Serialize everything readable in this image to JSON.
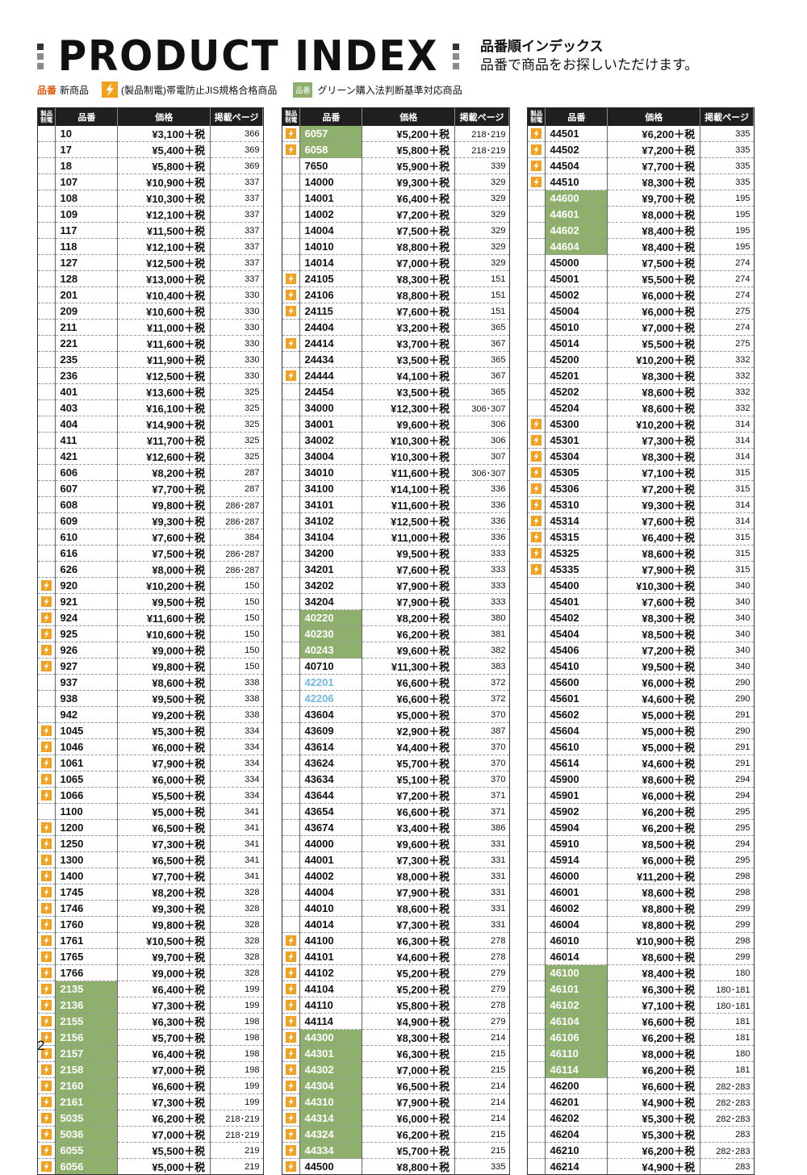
{
  "header": {
    "title": "PRODUCT INDEX",
    "jp_title": "品番順インデックス",
    "jp_subtitle": "品番で商品をお探しいただけます。"
  },
  "legend": {
    "new_label": "品番",
    "new_desc": "新商品",
    "bolt_desc": "(製品制電)帯電防止JIS規格合格商品",
    "green_label": "品番",
    "green_desc": "グリーン購入法判断基準対応商品"
  },
  "table_headers": {
    "icon": "製品\n制電",
    "code": "品番",
    "price": "価格",
    "page": "掲載ページ"
  },
  "columns": [
    [
      [
        "",
        "10",
        "¥3,100＋税",
        "366"
      ],
      [
        "",
        "17",
        "¥5,400＋税",
        "369"
      ],
      [
        "",
        "18",
        "¥5,800＋税",
        "369"
      ],
      [
        "",
        "107",
        "¥10,900＋税",
        "337"
      ],
      [
        "",
        "108",
        "¥10,300＋税",
        "337"
      ],
      [
        "",
        "109",
        "¥12,100＋税",
        "337"
      ],
      [
        "",
        "117",
        "¥11,500＋税",
        "337"
      ],
      [
        "",
        "118",
        "¥12,100＋税",
        "337"
      ],
      [
        "",
        "127",
        "¥12,500＋税",
        "337"
      ],
      [
        "",
        "128",
        "¥13,000＋税",
        "337"
      ],
      [
        "",
        "201",
        "¥10,400＋税",
        "330"
      ],
      [
        "",
        "209",
        "¥10,600＋税",
        "330"
      ],
      [
        "",
        "211",
        "¥11,000＋税",
        "330"
      ],
      [
        "",
        "221",
        "¥11,600＋税",
        "330"
      ],
      [
        "",
        "235",
        "¥11,900＋税",
        "330"
      ],
      [
        "",
        "236",
        "¥12,500＋税",
        "330"
      ],
      [
        "",
        "401",
        "¥13,600＋税",
        "325"
      ],
      [
        "",
        "403",
        "¥16,100＋税",
        "325"
      ],
      [
        "",
        "404",
        "¥14,900＋税",
        "325"
      ],
      [
        "",
        "411",
        "¥11,700＋税",
        "325"
      ],
      [
        "",
        "421",
        "¥12,600＋税",
        "325"
      ],
      [
        "",
        "606",
        "¥8,200＋税",
        "287"
      ],
      [
        "",
        "607",
        "¥7,700＋税",
        "287"
      ],
      [
        "",
        "608",
        "¥9,800＋税",
        "286･287"
      ],
      [
        "",
        "609",
        "¥9,300＋税",
        "286･287"
      ],
      [
        "",
        "610",
        "¥7,600＋税",
        "384"
      ],
      [
        "",
        "616",
        "¥7,500＋税",
        "286･287"
      ],
      [
        "",
        "626",
        "¥8,000＋税",
        "286･287"
      ],
      [
        "b",
        "920",
        "¥10,200＋税",
        "150"
      ],
      [
        "b",
        "921",
        "¥9,500＋税",
        "150"
      ],
      [
        "b",
        "924",
        "¥11,600＋税",
        "150"
      ],
      [
        "b",
        "925",
        "¥10,600＋税",
        "150"
      ],
      [
        "b",
        "926",
        "¥9,000＋税",
        "150"
      ],
      [
        "b",
        "927",
        "¥9,800＋税",
        "150"
      ],
      [
        "",
        "937",
        "¥8,600＋税",
        "338"
      ],
      [
        "",
        "938",
        "¥9,500＋税",
        "338"
      ],
      [
        "",
        "942",
        "¥9,200＋税",
        "338"
      ],
      [
        "b",
        "1045",
        "¥5,300＋税",
        "334"
      ],
      [
        "b",
        "1046",
        "¥6,000＋税",
        "334"
      ],
      [
        "b",
        "1061",
        "¥7,900＋税",
        "334"
      ],
      [
        "b",
        "1065",
        "¥6,000＋税",
        "334"
      ],
      [
        "b",
        "1066",
        "¥5,500＋税",
        "334"
      ],
      [
        "",
        "1100",
        "¥5,000＋税",
        "341"
      ],
      [
        "b",
        "1200",
        "¥6,500＋税",
        "341"
      ],
      [
        "b",
        "1250",
        "¥7,300＋税",
        "341"
      ],
      [
        "b",
        "1300",
        "¥6,500＋税",
        "341"
      ],
      [
        "b",
        "1400",
        "¥7,700＋税",
        "341"
      ],
      [
        "b",
        "1745",
        "¥8,200＋税",
        "328"
      ],
      [
        "b",
        "1746",
        "¥9,300＋税",
        "328"
      ],
      [
        "b",
        "1760",
        "¥9,800＋税",
        "328"
      ],
      [
        "b",
        "1761",
        "¥10,500＋税",
        "328"
      ],
      [
        "b",
        "1765",
        "¥9,700＋税",
        "328"
      ],
      [
        "b",
        "1766",
        "¥9,000＋税",
        "328"
      ],
      [
        "bg",
        "2135",
        "¥6,400＋税",
        "199"
      ],
      [
        "bg",
        "2136",
        "¥7,300＋税",
        "199"
      ],
      [
        "bg",
        "2155",
        "¥6,300＋税",
        "198"
      ],
      [
        "bg",
        "2156",
        "¥5,700＋税",
        "198"
      ],
      [
        "bg",
        "2157",
        "¥6,400＋税",
        "198"
      ],
      [
        "bg",
        "2158",
        "¥7,000＋税",
        "198"
      ],
      [
        "bg",
        "2160",
        "¥6,600＋税",
        "199"
      ],
      [
        "bg",
        "2161",
        "¥7,300＋税",
        "199"
      ],
      [
        "bg",
        "5035",
        "¥6,200＋税",
        "218･219"
      ],
      [
        "bg",
        "5036",
        "¥7,000＋税",
        "218･219"
      ],
      [
        "bg",
        "6055",
        "¥5,500＋税",
        "219"
      ],
      [
        "bg",
        "6056",
        "¥5,000＋税",
        "219"
      ]
    ],
    [
      [
        "bg",
        "6057",
        "¥5,200＋税",
        "218･219"
      ],
      [
        "bg",
        "6058",
        "¥5,800＋税",
        "218･219"
      ],
      [
        "",
        "7650",
        "¥5,900＋税",
        "339"
      ],
      [
        "",
        "14000",
        "¥9,300＋税",
        "329"
      ],
      [
        "",
        "14001",
        "¥6,400＋税",
        "329"
      ],
      [
        "",
        "14002",
        "¥7,200＋税",
        "329"
      ],
      [
        "",
        "14004",
        "¥7,500＋税",
        "329"
      ],
      [
        "",
        "14010",
        "¥8,800＋税",
        "329"
      ],
      [
        "",
        "14014",
        "¥7,000＋税",
        "329"
      ],
      [
        "b",
        "24105",
        "¥8,300＋税",
        "151"
      ],
      [
        "b",
        "24106",
        "¥8,800＋税",
        "151"
      ],
      [
        "b",
        "24115",
        "¥7,600＋税",
        "151"
      ],
      [
        "",
        "24404",
        "¥3,200＋税",
        "365"
      ],
      [
        "b",
        "24414",
        "¥3,700＋税",
        "367"
      ],
      [
        "",
        "24434",
        "¥3,500＋税",
        "365"
      ],
      [
        "b",
        "24444",
        "¥4,100＋税",
        "367"
      ],
      [
        "",
        "24454",
        "¥3,500＋税",
        "365"
      ],
      [
        "",
        "34000",
        "¥12,300＋税",
        "306･307"
      ],
      [
        "",
        "34001",
        "¥9,600＋税",
        "306"
      ],
      [
        "",
        "34002",
        "¥10,300＋税",
        "306"
      ],
      [
        "",
        "34004",
        "¥10,300＋税",
        "307"
      ],
      [
        "",
        "34010",
        "¥11,600＋税",
        "306･307"
      ],
      [
        "",
        "34100",
        "¥14,100＋税",
        "336"
      ],
      [
        "",
        "34101",
        "¥11,600＋税",
        "336"
      ],
      [
        "",
        "34102",
        "¥12,500＋税",
        "336"
      ],
      [
        "",
        "34104",
        "¥11,000＋税",
        "336"
      ],
      [
        "",
        "34200",
        "¥9,500＋税",
        "333"
      ],
      [
        "",
        "34201",
        "¥7,600＋税",
        "333"
      ],
      [
        "",
        "34202",
        "¥7,900＋税",
        "333"
      ],
      [
        "",
        "34204",
        "¥7,900＋税",
        "333"
      ],
      [
        "g",
        "40220",
        "¥8,200＋税",
        "380"
      ],
      [
        "g",
        "40230",
        "¥6,200＋税",
        "381"
      ],
      [
        "g",
        "40243",
        "¥9,600＋税",
        "382"
      ],
      [
        "",
        "40710",
        "¥11,300＋税",
        "383"
      ],
      [
        "n",
        "42201",
        "¥6,600＋税",
        "372"
      ],
      [
        "n",
        "42206",
        "¥6,600＋税",
        "372"
      ],
      [
        "",
        "43604",
        "¥5,000＋税",
        "370"
      ],
      [
        "",
        "43609",
        "¥2,900＋税",
        "387"
      ],
      [
        "",
        "43614",
        "¥4,400＋税",
        "370"
      ],
      [
        "",
        "43624",
        "¥5,700＋税",
        "370"
      ],
      [
        "",
        "43634",
        "¥5,100＋税",
        "370"
      ],
      [
        "",
        "43644",
        "¥7,200＋税",
        "371"
      ],
      [
        "",
        "43654",
        "¥6,600＋税",
        "371"
      ],
      [
        "",
        "43674",
        "¥3,400＋税",
        "386"
      ],
      [
        "",
        "44000",
        "¥9,600＋税",
        "331"
      ],
      [
        "",
        "44001",
        "¥7,300＋税",
        "331"
      ],
      [
        "",
        "44002",
        "¥8,000＋税",
        "331"
      ],
      [
        "",
        "44004",
        "¥7,900＋税",
        "331"
      ],
      [
        "",
        "44010",
        "¥8,600＋税",
        "331"
      ],
      [
        "",
        "44014",
        "¥7,300＋税",
        "331"
      ],
      [
        "b",
        "44100",
        "¥6,300＋税",
        "278"
      ],
      [
        "b",
        "44101",
        "¥4,600＋税",
        "278"
      ],
      [
        "b",
        "44102",
        "¥5,200＋税",
        "279"
      ],
      [
        "b",
        "44104",
        "¥5,200＋税",
        "279"
      ],
      [
        "b",
        "44110",
        "¥5,800＋税",
        "278"
      ],
      [
        "b",
        "44114",
        "¥4,900＋税",
        "279"
      ],
      [
        "bg",
        "44300",
        "¥8,300＋税",
        "214"
      ],
      [
        "bg",
        "44301",
        "¥6,300＋税",
        "215"
      ],
      [
        "bg",
        "44302",
        "¥7,000＋税",
        "215"
      ],
      [
        "bg",
        "44304",
        "¥6,500＋税",
        "214"
      ],
      [
        "bg",
        "44310",
        "¥7,900＋税",
        "214"
      ],
      [
        "bg",
        "44314",
        "¥6,000＋税",
        "214"
      ],
      [
        "bg",
        "44324",
        "¥6,200＋税",
        "215"
      ],
      [
        "bg",
        "44334",
        "¥5,700＋税",
        "215"
      ],
      [
        "b",
        "44500",
        "¥8,800＋税",
        "335"
      ]
    ],
    [
      [
        "b",
        "44501",
        "¥6,200＋税",
        "335"
      ],
      [
        "b",
        "44502",
        "¥7,200＋税",
        "335"
      ],
      [
        "b",
        "44504",
        "¥7,700＋税",
        "335"
      ],
      [
        "b",
        "44510",
        "¥8,300＋税",
        "335"
      ],
      [
        "g",
        "44600",
        "¥9,700＋税",
        "195"
      ],
      [
        "g",
        "44601",
        "¥8,000＋税",
        "195"
      ],
      [
        "g",
        "44602",
        "¥8,400＋税",
        "195"
      ],
      [
        "g",
        "44604",
        "¥8,400＋税",
        "195"
      ],
      [
        "",
        "45000",
        "¥7,500＋税",
        "274"
      ],
      [
        "",
        "45001",
        "¥5,500＋税",
        "274"
      ],
      [
        "",
        "45002",
        "¥6,000＋税",
        "274"
      ],
      [
        "",
        "45004",
        "¥6,000＋税",
        "275"
      ],
      [
        "",
        "45010",
        "¥7,000＋税",
        "274"
      ],
      [
        "",
        "45014",
        "¥5,500＋税",
        "275"
      ],
      [
        "",
        "45200",
        "¥10,200＋税",
        "332"
      ],
      [
        "",
        "45201",
        "¥8,300＋税",
        "332"
      ],
      [
        "",
        "45202",
        "¥8,600＋税",
        "332"
      ],
      [
        "",
        "45204",
        "¥8,600＋税",
        "332"
      ],
      [
        "b",
        "45300",
        "¥10,200＋税",
        "314"
      ],
      [
        "b",
        "45301",
        "¥7,300＋税",
        "314"
      ],
      [
        "b",
        "45304",
        "¥8,300＋税",
        "314"
      ],
      [
        "b",
        "45305",
        "¥7,100＋税",
        "315"
      ],
      [
        "b",
        "45306",
        "¥7,200＋税",
        "315"
      ],
      [
        "b",
        "45310",
        "¥9,300＋税",
        "314"
      ],
      [
        "b",
        "45314",
        "¥7,600＋税",
        "314"
      ],
      [
        "b",
        "45315",
        "¥6,400＋税",
        "315"
      ],
      [
        "b",
        "45325",
        "¥8,600＋税",
        "315"
      ],
      [
        "b",
        "45335",
        "¥7,900＋税",
        "315"
      ],
      [
        "",
        "45400",
        "¥10,300＋税",
        "340"
      ],
      [
        "",
        "45401",
        "¥7,600＋税",
        "340"
      ],
      [
        "",
        "45402",
        "¥8,300＋税",
        "340"
      ],
      [
        "",
        "45404",
        "¥8,500＋税",
        "340"
      ],
      [
        "",
        "45406",
        "¥7,200＋税",
        "340"
      ],
      [
        "",
        "45410",
        "¥9,500＋税",
        "340"
      ],
      [
        "",
        "45600",
        "¥6,000＋税",
        "290"
      ],
      [
        "",
        "45601",
        "¥4,600＋税",
        "290"
      ],
      [
        "",
        "45602",
        "¥5,000＋税",
        "291"
      ],
      [
        "",
        "45604",
        "¥5,000＋税",
        "290"
      ],
      [
        "",
        "45610",
        "¥5,000＋税",
        "291"
      ],
      [
        "",
        "45614",
        "¥4,600＋税",
        "291"
      ],
      [
        "",
        "45900",
        "¥8,600＋税",
        "294"
      ],
      [
        "",
        "45901",
        "¥6,000＋税",
        "294"
      ],
      [
        "",
        "45902",
        "¥6,200＋税",
        "295"
      ],
      [
        "",
        "45904",
        "¥6,200＋税",
        "295"
      ],
      [
        "",
        "45910",
        "¥8,500＋税",
        "294"
      ],
      [
        "",
        "45914",
        "¥6,000＋税",
        "295"
      ],
      [
        "",
        "46000",
        "¥11,200＋税",
        "298"
      ],
      [
        "",
        "46001",
        "¥8,600＋税",
        "298"
      ],
      [
        "",
        "46002",
        "¥8,800＋税",
        "299"
      ],
      [
        "",
        "46004",
        "¥8,800＋税",
        "299"
      ],
      [
        "",
        "46010",
        "¥10,900＋税",
        "298"
      ],
      [
        "",
        "46014",
        "¥8,600＋税",
        "299"
      ],
      [
        "g",
        "46100",
        "¥8,400＋税",
        "180"
      ],
      [
        "g",
        "46101",
        "¥6,300＋税",
        "180･181"
      ],
      [
        "g",
        "46102",
        "¥7,100＋税",
        "180･181"
      ],
      [
        "g",
        "46104",
        "¥6,600＋税",
        "181"
      ],
      [
        "g",
        "46106",
        "¥6,200＋税",
        "181"
      ],
      [
        "g",
        "46110",
        "¥8,000＋税",
        "180"
      ],
      [
        "g",
        "46114",
        "¥6,200＋税",
        "181"
      ],
      [
        "",
        "46200",
        "¥6,600＋税",
        "282･283"
      ],
      [
        "",
        "46201",
        "¥4,900＋税",
        "282･283"
      ],
      [
        "",
        "46202",
        "¥5,300＋税",
        "282･283"
      ],
      [
        "",
        "46204",
        "¥5,300＋税",
        "283"
      ],
      [
        "",
        "46210",
        "¥6,200＋税",
        "282･283"
      ],
      [
        "",
        "46214",
        "¥4,900＋税",
        "283"
      ]
    ]
  ],
  "page_number": "2"
}
